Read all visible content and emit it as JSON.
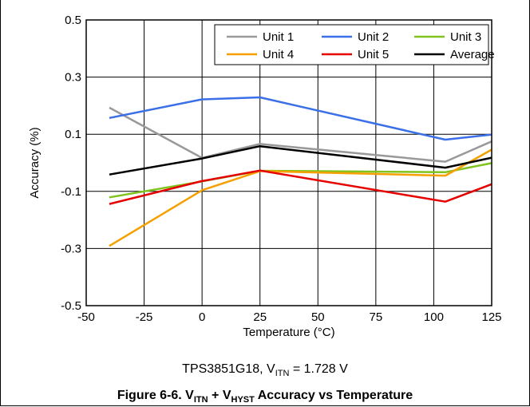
{
  "chart_data": {
    "type": "line",
    "xlabel": "Temperature (°C)",
    "ylabel": "Accuracy (%)",
    "xlim": [
      -50,
      125
    ],
    "ylim": [
      -0.5,
      0.5
    ],
    "xticks": [
      "-50",
      "-25",
      "0",
      "25",
      "50",
      "75",
      "100",
      "125"
    ],
    "yticks": [
      "0.5",
      "0.3",
      "0.1",
      "-0.1",
      "-0.3",
      "-0.5"
    ],
    "grid": true,
    "legend_position": "top-right",
    "x": [
      -40,
      0,
      25,
      105,
      125
    ],
    "series": [
      {
        "name": "Unit 1",
        "color": "#999999",
        "values": [
          0.193,
          0.017,
          0.066,
          0.004,
          0.075
        ]
      },
      {
        "name": "Unit 2",
        "color": "#3a6fe8",
        "values": [
          0.157,
          0.222,
          0.229,
          0.081,
          0.099
        ]
      },
      {
        "name": "Unit 3",
        "color": "#7fc31c",
        "values": [
          -0.121,
          -0.065,
          -0.028,
          -0.033,
          -0.001
        ]
      },
      {
        "name": "Unit 4",
        "color": "#f5a000",
        "values": [
          -0.291,
          -0.096,
          -0.029,
          -0.045,
          0.046
        ]
      },
      {
        "name": "Unit 5",
        "color": "#e60000",
        "values": [
          -0.144,
          -0.064,
          -0.027,
          -0.136,
          -0.075
        ]
      },
      {
        "name": "Average",
        "color": "#000000",
        "values": [
          -0.041,
          0.015,
          0.058,
          -0.017,
          0.018
        ]
      }
    ]
  },
  "subtitle": {
    "part": "TPS3851G18, V",
    "sub": "ITN",
    "rest": " = 1.728 V"
  },
  "caption": {
    "prefix": "Figure 6-6. V",
    "sub1": "ITN",
    "mid": " + V",
    "sub2": "HYST",
    "suffix": " Accuracy vs Temperature"
  }
}
